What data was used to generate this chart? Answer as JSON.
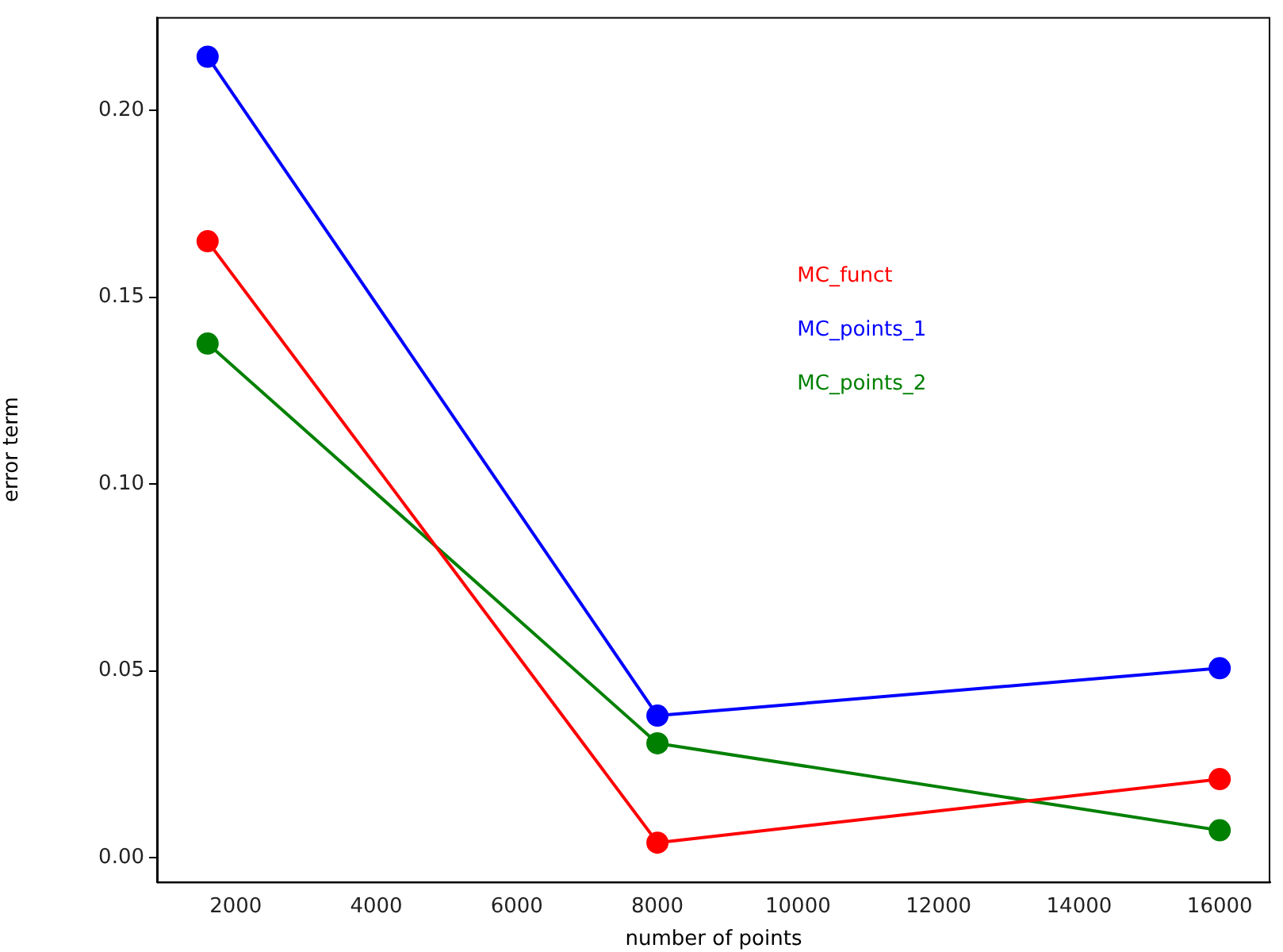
{
  "chart_data": {
    "type": "line",
    "xlabel": "number of points",
    "ylabel": "error term",
    "x": [
      1600,
      8000,
      16000
    ],
    "series": [
      {
        "name": "MC_funct",
        "color": "#ff0000",
        "values": [
          0.165,
          0.004,
          0.021
        ]
      },
      {
        "name": "MC_points_1",
        "color": "#0000ff",
        "values": [
          0.2144,
          0.038,
          0.0507
        ]
      },
      {
        "name": "MC_points_2",
        "color": "#008000",
        "values": [
          0.1376,
          0.0306,
          0.0073
        ]
      }
    ],
    "xlim": [
      880,
      16720
    ],
    "xticks": [
      2000,
      4000,
      6000,
      8000,
      10000,
      12000,
      14000,
      16000
    ],
    "ylim": [
      -0.0065,
      0.225
    ],
    "yticks": [
      {
        "value": 0,
        "label": "0.00"
      },
      {
        "value": 0.05,
        "label": "0.05"
      },
      {
        "value": 0.1,
        "label": "0.10"
      },
      {
        "value": 0.15,
        "label": "0.15"
      },
      {
        "value": 0.2,
        "label": "0.20"
      }
    ],
    "marker": "circle",
    "legend": "top right",
    "grid": false
  }
}
